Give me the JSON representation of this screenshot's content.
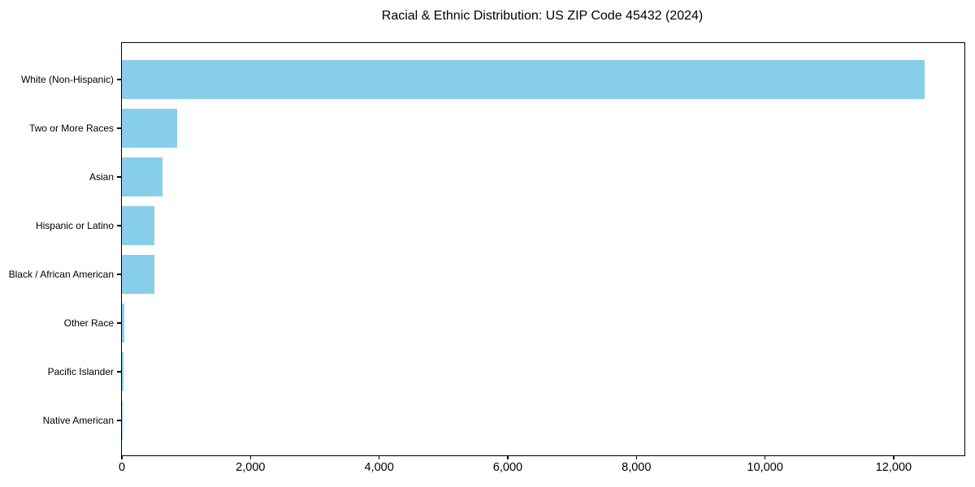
{
  "page": {
    "background_color": "#ffffff",
    "text_color": "#000000"
  },
  "chart_data": {
    "type": "bar",
    "orientation": "horizontal",
    "title": "Racial & Ethnic Distribution: US ZIP Code 45432 (2024)",
    "categories": [
      "White (Non-Hispanic)",
      "Two or More Races",
      "Asian",
      "Hispanic or Latino",
      "Black / African American",
      "Other Race",
      "Pacific Islander",
      "Native American"
    ],
    "values": [
      12480,
      860,
      630,
      510,
      500,
      40,
      30,
      8
    ],
    "bar_color": "#87CEEB",
    "xlabel": "",
    "ylabel": "",
    "xlim": [
      0,
      13100
    ],
    "x_ticks": [
      0,
      2000,
      4000,
      6000,
      8000,
      10000,
      12000
    ],
    "x_tick_labels": [
      "0",
      "2,000",
      "4,000",
      "6,000",
      "8,000",
      "10,000",
      "12,000"
    ],
    "grid": false,
    "legend_position": "none",
    "frame": "full-box"
  }
}
